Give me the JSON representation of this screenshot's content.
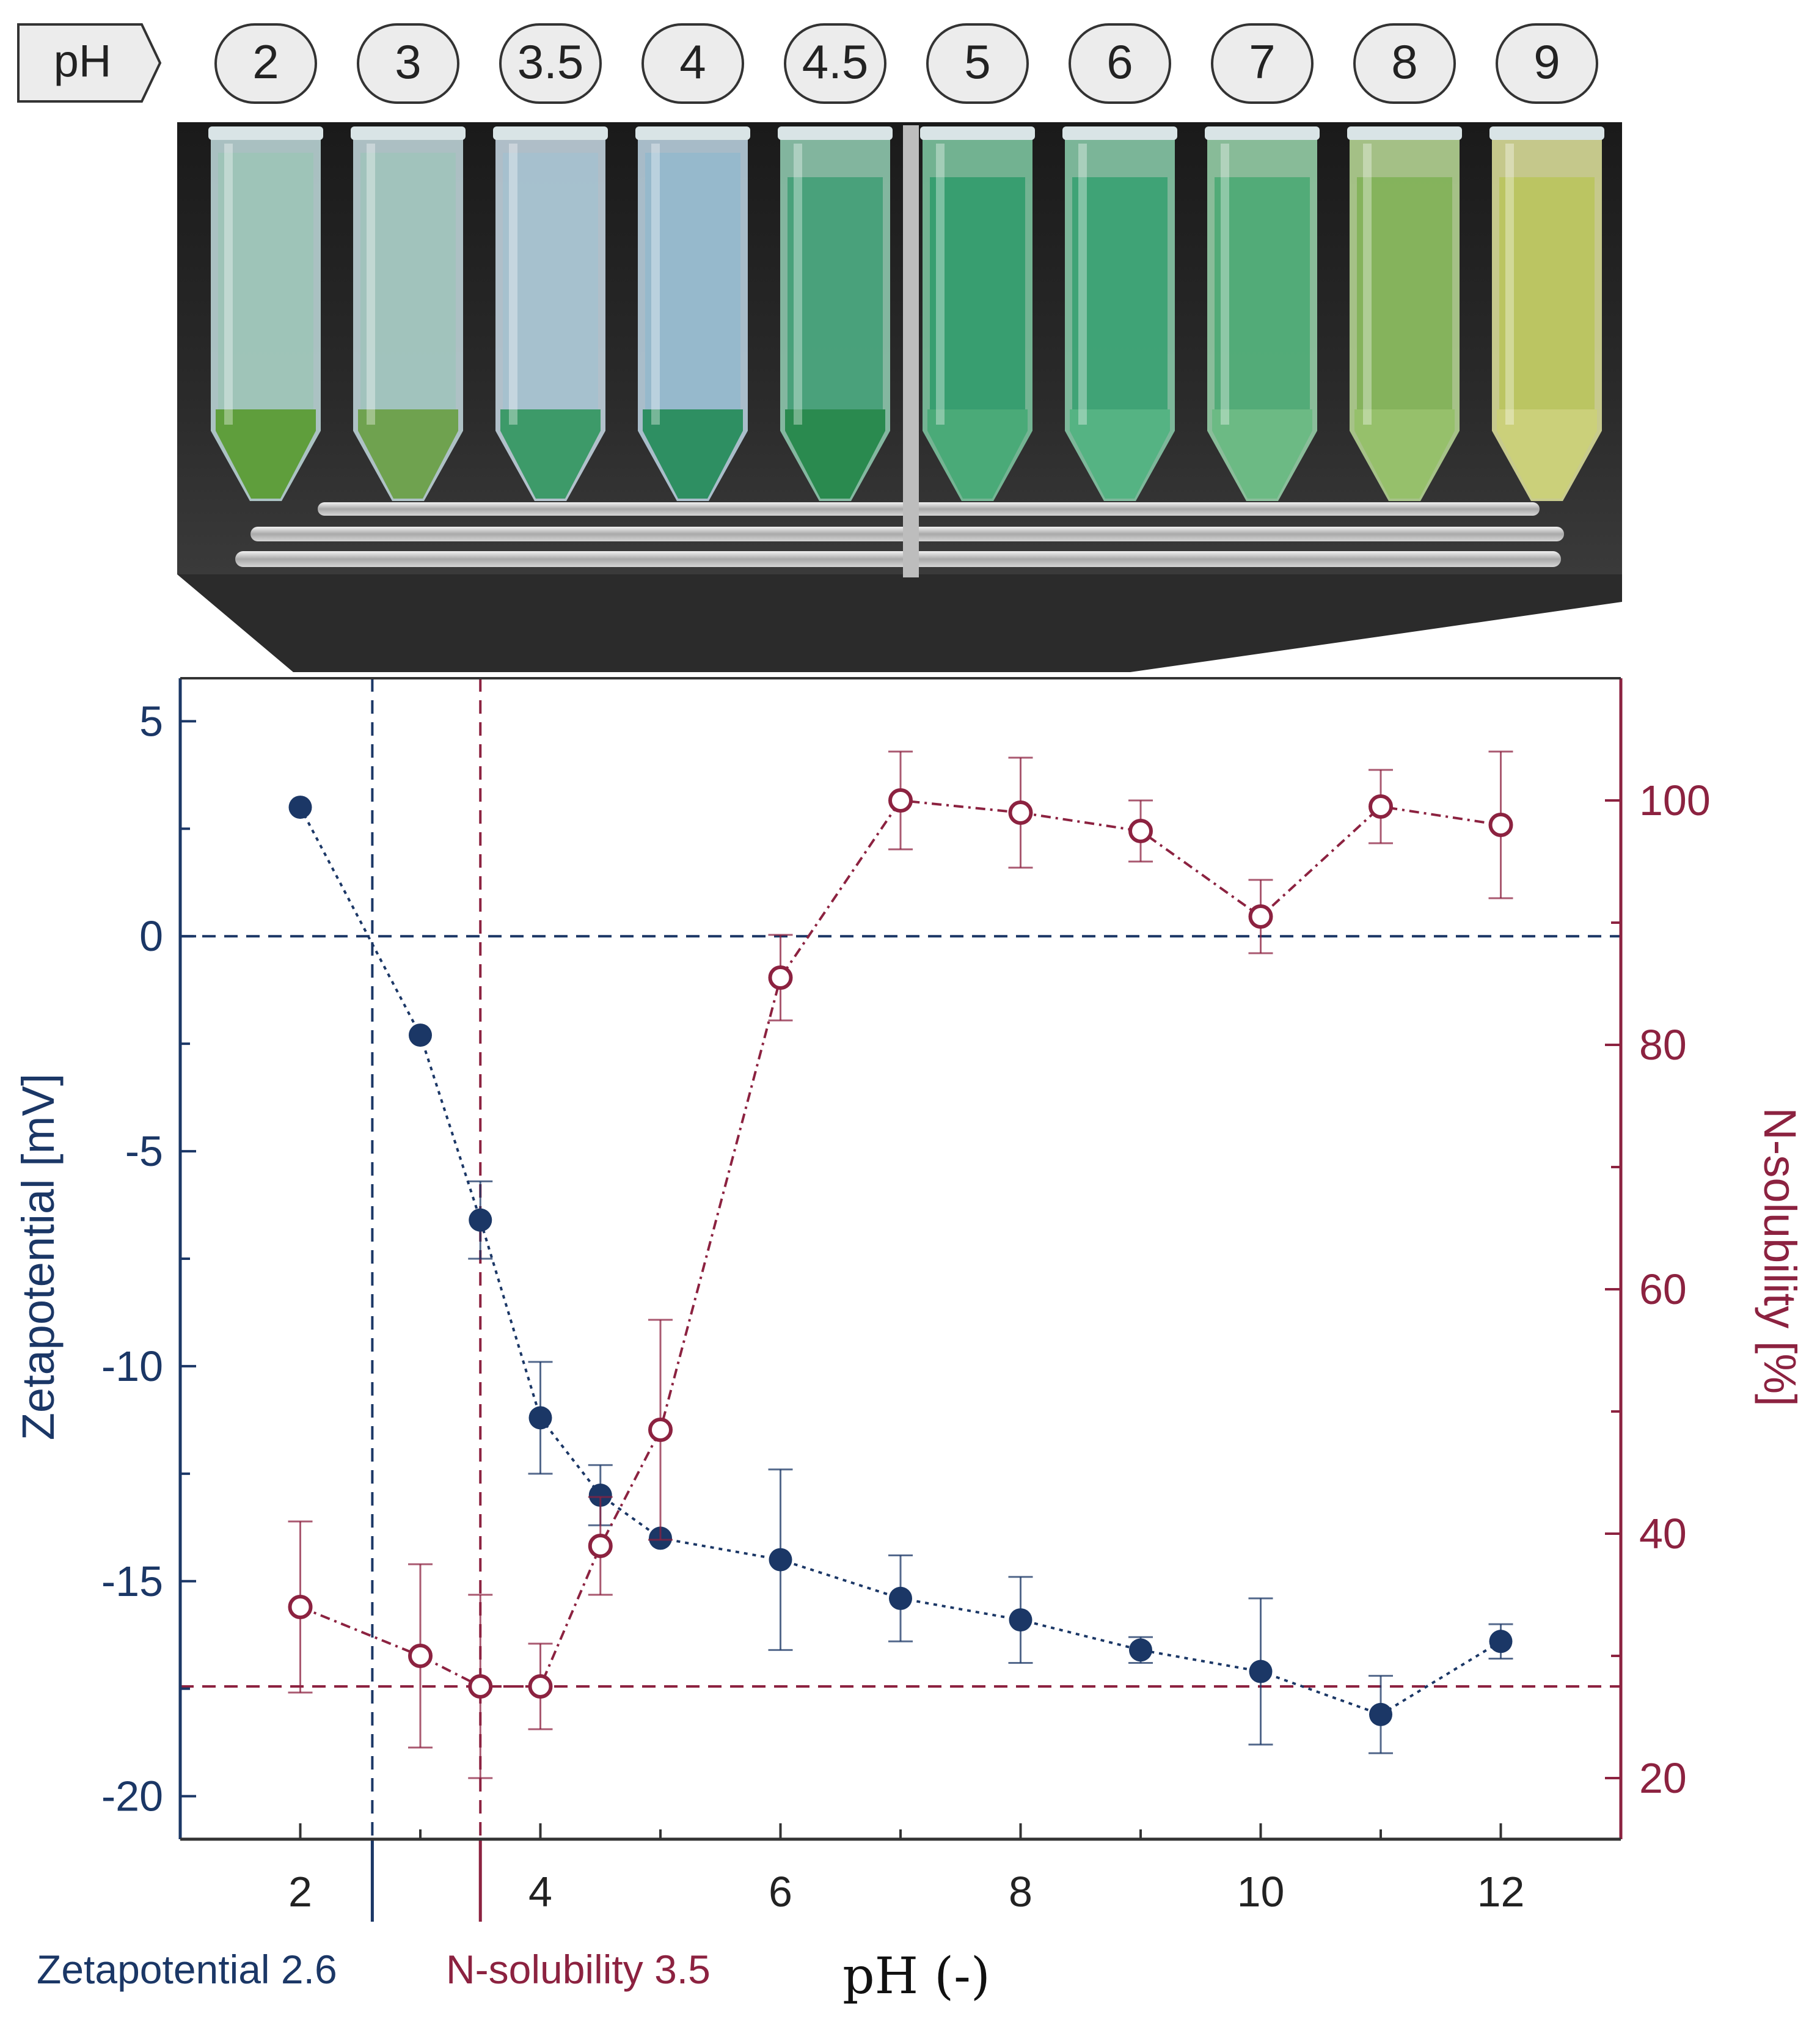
{
  "photo": {
    "ph_label": "pH",
    "tube_labels": [
      "2",
      "3",
      "3.5",
      "4",
      "4.5",
      "5",
      "6",
      "7",
      "8",
      "9"
    ],
    "tube_colors": [
      {
        "liquid": "#9cc4b6",
        "pellet": "#5f9e3c",
        "glass": "#b9d3d4"
      },
      {
        "liquid": "#9fc3bb",
        "pellet": "#6fa24f",
        "glass": "#bcd1d6"
      },
      {
        "liquid": "#a4c1cf",
        "pellet": "#3d9a69",
        "glass": "#c0d0dc"
      },
      {
        "liquid": "#93b9cc",
        "pellet": "#2e8f62",
        "glass": "#b7cddb"
      },
      {
        "liquid": "#3f9e74",
        "pellet": "#2a8a4f",
        "glass": "#8ec7ad"
      },
      {
        "liquid": "#2e9a6a",
        "pellet": "#4aaa78",
        "glass": "#7cc39f"
      },
      {
        "liquid": "#35a070",
        "pellet": "#55b383",
        "glass": "#86c7a6"
      },
      {
        "liquid": "#49a872",
        "pellet": "#6cba84",
        "glass": "#95cda6"
      },
      {
        "liquid": "#7fb055",
        "pellet": "#96c06b",
        "glass": "#b4d392"
      },
      {
        "liquid": "#b9c45a",
        "pellet": "#cbd07a",
        "glass": "#d8dc98"
      }
    ]
  },
  "chart_data": {
    "type": "scatter",
    "xlabel": "pH (-)",
    "ylabel_left": "Zetapotential [mV]",
    "ylabel_right": "N-solubility [%]",
    "xlim": [
      1,
      13
    ],
    "xticks": [
      2,
      4,
      6,
      8,
      10,
      12
    ],
    "ylim_left": [
      -21,
      6
    ],
    "yticks_left": [
      5,
      0,
      -5,
      -10,
      -15,
      -20
    ],
    "ylim_right": [
      15,
      110
    ],
    "yticks_right": [
      20,
      40,
      60,
      80,
      100
    ],
    "colors": {
      "zeta": "#1b3766",
      "nsol": "#8c2240"
    },
    "series": [
      {
        "name": "Zetapotential",
        "axis": "left",
        "marker": "filled",
        "x": [
          2,
          3,
          3.5,
          4,
          4.5,
          5,
          6,
          7,
          8,
          9,
          10,
          11,
          12
        ],
        "y": [
          3.0,
          -2.3,
          -6.6,
          -11.2,
          -13.0,
          -14.0,
          -14.5,
          -15.4,
          -15.9,
          -16.6,
          -17.1,
          -18.1,
          -16.4
        ],
        "err": [
          0,
          0,
          0.9,
          1.3,
          0.7,
          0,
          2.1,
          1.0,
          1.0,
          0.3,
          1.7,
          0.9,
          0.4
        ]
      },
      {
        "name": "N-solubility",
        "axis": "right",
        "marker": "open",
        "x": [
          2,
          3,
          3.5,
          4,
          4.5,
          5,
          6,
          7,
          8,
          9,
          10,
          11,
          12
        ],
        "y": [
          34,
          30,
          27.5,
          27.5,
          39,
          48.5,
          85.5,
          100,
          99,
          97.5,
          90.5,
          99.5,
          98
        ],
        "err": [
          7,
          7.5,
          7.5,
          3.5,
          4,
          9,
          3.5,
          4,
          4.5,
          2.5,
          3,
          3,
          6
        ]
      }
    ],
    "reference_lines": {
      "zeta_zero": 0,
      "nsol_min": 27.5,
      "zeta_iep_ph": 2.6,
      "nsol_min_ph": 3.5
    },
    "annotations": {
      "zeta_label": "Zetapotential 2.6",
      "nsol_label": "N-solubility 3.5"
    }
  }
}
